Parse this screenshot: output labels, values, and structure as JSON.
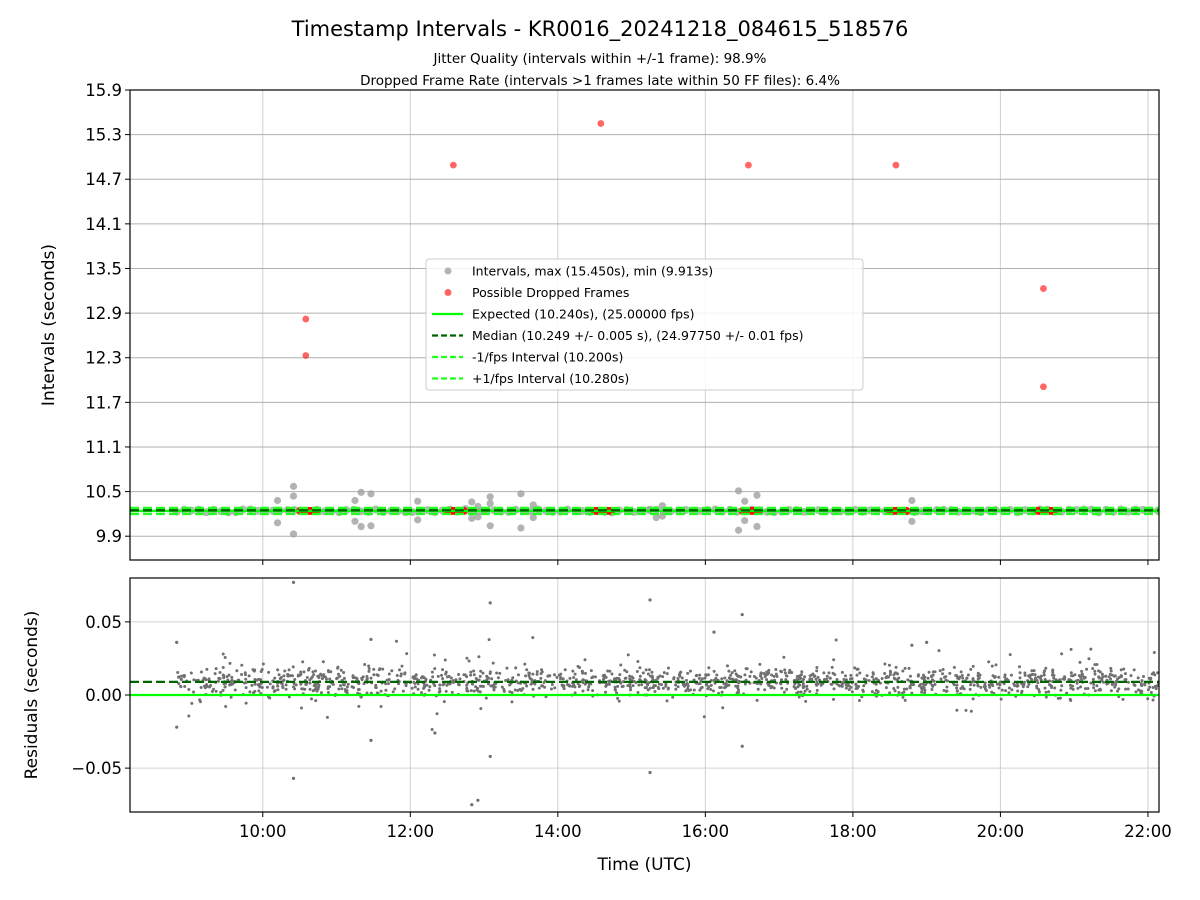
{
  "figure": {
    "title": "Timestamp Intervals - KR0016_20241218_084615_518576",
    "subtitle_1": "Jitter Quality (intervals within +/-1 frame): 98.9%",
    "subtitle_2": "Dropped Frame Rate (intervals >1 frames late within 50 FF files): 6.4%"
  },
  "chart_data": [
    {
      "type": "scatter",
      "panel": "top",
      "xlabel": "",
      "ylabel": "Intervals (seconds)",
      "x_range_hours": [
        8.2,
        22.15
      ],
      "ylim": [
        9.58,
        15.9
      ],
      "y_ticks": [
        9.9,
        10.5,
        11.1,
        11.7,
        12.3,
        12.9,
        13.5,
        14.1,
        14.7,
        15.3,
        15.9
      ],
      "grid": true,
      "legend_placement": "center",
      "legend": [
        "Intervals, max (15.450s), min (9.913s)",
        "Possible Dropped Frames",
        "Expected (10.240s), (25.00000 fps)",
        "Median (10.249 +/- 0.005 s), (24.97750 +/- 0.01 fps)",
        "-1/fps Interval (10.200s)",
        "+1/fps Interval (10.280s)"
      ],
      "series": [
        {
          "name": "Intervals, max (15.450s), min (9.913s)",
          "color": "#a0a0a0",
          "points": [
            {
              "x": "10:12",
              "y": 10.38
            },
            {
              "x": "10:12",
              "y": 10.08
            },
            {
              "x": "10:25",
              "y": 10.57
            },
            {
              "x": "10:25",
              "y": 10.44
            },
            {
              "x": "10:25",
              "y": 9.93
            },
            {
              "x": "11:15",
              "y": 10.38
            },
            {
              "x": "11:15",
              "y": 10.1
            },
            {
              "x": "11:20",
              "y": 10.49
            },
            {
              "x": "11:20",
              "y": 10.03
            },
            {
              "x": "11:28",
              "y": 10.47
            },
            {
              "x": "11:28",
              "y": 10.04
            },
            {
              "x": "12:06",
              "y": 10.37
            },
            {
              "x": "12:06",
              "y": 10.12
            },
            {
              "x": "12:45",
              "y": 10.27
            },
            {
              "x": "12:50",
              "y": 10.36
            },
            {
              "x": "12:50",
              "y": 10.14
            },
            {
              "x": "12:55",
              "y": 10.3
            },
            {
              "x": "12:55",
              "y": 10.16
            },
            {
              "x": "13:00",
              "y": 10.25
            },
            {
              "x": "13:05",
              "y": 10.43
            },
            {
              "x": "13:05",
              "y": 10.34
            },
            {
              "x": "13:05",
              "y": 10.04
            },
            {
              "x": "13:30",
              "y": 10.47
            },
            {
              "x": "13:30",
              "y": 10.01
            },
            {
              "x": "13:40",
              "y": 10.32
            },
            {
              "x": "13:40",
              "y": 10.15
            },
            {
              "x": "15:15",
              "y": 10.26
            },
            {
              "x": "15:20",
              "y": 10.15
            },
            {
              "x": "15:25",
              "y": 10.31
            },
            {
              "x": "15:25",
              "y": 10.17
            },
            {
              "x": "16:27",
              "y": 10.51
            },
            {
              "x": "16:27",
              "y": 9.98
            },
            {
              "x": "16:32",
              "y": 10.37
            },
            {
              "x": "16:32",
              "y": 10.11
            },
            {
              "x": "16:42",
              "y": 10.45
            },
            {
              "x": "16:42",
              "y": 10.03
            },
            {
              "x": "18:48",
              "y": 10.38
            },
            {
              "x": "18:48",
              "y": 10.1
            }
          ]
        },
        {
          "name": "Possible Dropped Frames",
          "color": "#ff0000",
          "points": [
            {
              "x": "10:35",
              "y": 12.82
            },
            {
              "x": "10:35",
              "y": 12.33
            },
            {
              "x": "12:35",
              "y": 14.89
            },
            {
              "x": "14:35",
              "y": 15.45
            },
            {
              "x": "16:35",
              "y": 14.89
            },
            {
              "x": "18:35",
              "y": 14.89
            },
            {
              "x": "20:35",
              "y": 13.23
            },
            {
              "x": "20:35",
              "y": 11.91
            }
          ]
        }
      ],
      "lines": [
        {
          "name": "Expected (10.240s), (25.00000 fps)",
          "y": 10.24,
          "color": "#00ff00",
          "style": "solid"
        },
        {
          "name": "Median (10.249 +/- 0.005 s), (24.97750 +/- 0.01 fps)",
          "y": 10.249,
          "color": "#006400",
          "style": "dashed"
        },
        {
          "name": "-1/fps Interval (10.200s)",
          "y": 10.2,
          "color": "#20ff20",
          "style": "dashed"
        },
        {
          "name": "+1/fps Interval (10.280s)",
          "y": 10.28,
          "color": "#20ff20",
          "style": "dashed"
        }
      ],
      "regular_series": {
        "start": "08:50",
        "end": "22:10",
        "y": 10.24,
        "color": "#a0a0a0"
      },
      "dropped_clusters": [
        "10:37",
        "12:37",
        "14:37",
        "16:37",
        "18:37",
        "20:37"
      ]
    },
    {
      "type": "scatter",
      "panel": "bottom",
      "xlabel": "Time (UTC)",
      "ylabel": "Residuals (seconds)",
      "x_ticks": [
        "10:00",
        "12:00",
        "14:00",
        "16:00",
        "18:00",
        "20:00",
        "22:00"
      ],
      "x_range_hours": [
        8.2,
        22.15
      ],
      "ylim": [
        -0.08,
        0.08
      ],
      "y_ticks": [
        -0.05,
        0.0,
        0.05
      ],
      "y_tick_labels": [
        "−0.05",
        "0.00",
        "0.05"
      ],
      "grid": true,
      "series": [
        {
          "name": "Residuals",
          "color": "#707070",
          "center": 0.009,
          "spread": 0.007,
          "count": 1500,
          "start": "08:50",
          "end": "22:10"
        }
      ],
      "outliers": [
        {
          "x": "08:50",
          "y": 0.036
        },
        {
          "x": "08:50",
          "y": -0.022
        },
        {
          "x": "10:25",
          "y": 0.077
        },
        {
          "x": "10:25",
          "y": -0.057
        },
        {
          "x": "11:28",
          "y": 0.038
        },
        {
          "x": "11:28",
          "y": -0.031
        },
        {
          "x": "12:20",
          "y": -0.026
        },
        {
          "x": "12:50",
          "y": -0.075
        },
        {
          "x": "12:55",
          "y": -0.072
        },
        {
          "x": "13:05",
          "y": 0.063
        },
        {
          "x": "13:05",
          "y": -0.042
        },
        {
          "x": "15:15",
          "y": 0.065
        },
        {
          "x": "15:15",
          "y": -0.053
        },
        {
          "x": "16:07",
          "y": 0.043
        },
        {
          "x": "16:30",
          "y": 0.055
        },
        {
          "x": "16:30",
          "y": -0.035
        },
        {
          "x": "18:48",
          "y": 0.034
        },
        {
          "x": "19:00",
          "y": 0.036
        }
      ],
      "lines": [
        {
          "name": "Expected",
          "y": 0.0,
          "color": "#00ff00",
          "style": "solid"
        },
        {
          "name": "Median",
          "y": 0.009,
          "color": "#006400",
          "style": "dashed"
        }
      ]
    }
  ]
}
